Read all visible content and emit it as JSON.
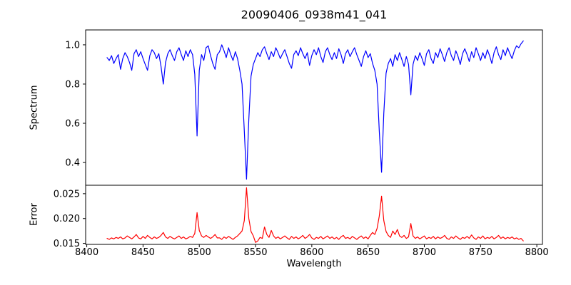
{
  "figure": {
    "title": "20090406_0938m41_041",
    "background_color": "#ffffff",
    "frame_color": "#000000",
    "text_color": "#000000"
  },
  "chart_data": [
    {
      "type": "line",
      "name": "spectrum",
      "title": "20090406_0938m41_041",
      "ylabel": "Spectrum",
      "line_color": "#0000ff",
      "grid": false,
      "legend": false,
      "xlim": [
        8399,
        8805
      ],
      "ylim": [
        0.284,
        1.076
      ],
      "yticks": [
        0.4,
        0.6,
        0.8,
        1.0
      ],
      "ytick_labels": [
        "0.4",
        "0.6",
        "0.8",
        "1.0"
      ],
      "x_start": 8418,
      "x_step": 2,
      "values": [
        0.935,
        0.92,
        0.945,
        0.905,
        0.93,
        0.95,
        0.875,
        0.93,
        0.96,
        0.94,
        0.91,
        0.87,
        0.955,
        0.975,
        0.94,
        0.965,
        0.93,
        0.9,
        0.87,
        0.945,
        0.975,
        0.96,
        0.93,
        0.955,
        0.89,
        0.8,
        0.91,
        0.955,
        0.975,
        0.945,
        0.92,
        0.965,
        0.985,
        0.95,
        0.92,
        0.97,
        0.94,
        0.975,
        0.95,
        0.85,
        0.535,
        0.87,
        0.95,
        0.92,
        0.985,
        0.995,
        0.945,
        0.905,
        0.875,
        0.95,
        0.965,
        1.0,
        0.97,
        0.935,
        0.985,
        0.95,
        0.92,
        0.965,
        0.93,
        0.87,
        0.8,
        0.56,
        0.315,
        0.62,
        0.84,
        0.9,
        0.93,
        0.96,
        0.94,
        0.975,
        0.99,
        0.955,
        0.925,
        0.965,
        0.94,
        0.985,
        0.96,
        0.93,
        0.955,
        0.975,
        0.94,
        0.905,
        0.88,
        0.95,
        0.97,
        0.945,
        0.985,
        0.955,
        0.93,
        0.96,
        0.895,
        0.945,
        0.975,
        0.95,
        0.985,
        0.94,
        0.91,
        0.965,
        0.985,
        0.95,
        0.925,
        0.96,
        0.93,
        0.98,
        0.95,
        0.905,
        0.955,
        0.975,
        0.94,
        0.965,
        0.985,
        0.95,
        0.92,
        0.89,
        0.94,
        0.97,
        0.935,
        0.955,
        0.905,
        0.87,
        0.8,
        0.56,
        0.35,
        0.65,
        0.855,
        0.905,
        0.93,
        0.89,
        0.95,
        0.92,
        0.96,
        0.925,
        0.89,
        0.94,
        0.9,
        0.745,
        0.9,
        0.945,
        0.92,
        0.96,
        0.93,
        0.895,
        0.955,
        0.975,
        0.93,
        0.905,
        0.96,
        0.935,
        0.98,
        0.95,
        0.915,
        0.96,
        0.985,
        0.945,
        0.92,
        0.97,
        0.94,
        0.9,
        0.955,
        0.98,
        0.95,
        0.915,
        0.965,
        0.935,
        0.985,
        0.955,
        0.92,
        0.96,
        0.93,
        0.975,
        0.945,
        0.905,
        0.96,
        0.99,
        0.95,
        0.925,
        0.975,
        0.945,
        0.985,
        0.955,
        0.93,
        0.97,
        0.995,
        0.985,
        1.005,
        1.02
      ]
    },
    {
      "type": "line",
      "name": "error",
      "xlabel": "Wavelength",
      "ylabel": "Error",
      "line_color": "#ff0000",
      "grid": false,
      "legend": false,
      "xlim": [
        8399,
        8805
      ],
      "ylim": [
        0.0148,
        0.0267
      ],
      "yticks": [
        0.015,
        0.02,
        0.025
      ],
      "ytick_labels": [
        "0.015",
        "0.020",
        "0.025"
      ],
      "xticks": [
        8400,
        8450,
        8500,
        8550,
        8600,
        8650,
        8700,
        8750,
        8800
      ],
      "xtick_labels": [
        "8400",
        "8450",
        "8500",
        "8550",
        "8600",
        "8650",
        "8700",
        "8750",
        "8800"
      ],
      "x_start": 8418,
      "x_step": 2,
      "values": [
        0.016,
        0.0158,
        0.0161,
        0.0159,
        0.0162,
        0.016,
        0.0163,
        0.0159,
        0.0161,
        0.0165,
        0.0162,
        0.0159,
        0.0163,
        0.0168,
        0.0161,
        0.0159,
        0.0164,
        0.016,
        0.0166,
        0.0162,
        0.0159,
        0.0163,
        0.016,
        0.0162,
        0.0166,
        0.0172,
        0.0163,
        0.016,
        0.0164,
        0.0161,
        0.0159,
        0.0162,
        0.0165,
        0.016,
        0.0163,
        0.0159,
        0.0161,
        0.0164,
        0.0162,
        0.017,
        0.0212,
        0.0176,
        0.0165,
        0.0162,
        0.0166,
        0.0163,
        0.016,
        0.0163,
        0.0168,
        0.0161,
        0.0161,
        0.0158,
        0.0163,
        0.016,
        0.0164,
        0.0161,
        0.0158,
        0.0162,
        0.0165,
        0.017,
        0.0175,
        0.0196,
        0.0262,
        0.02,
        0.0174,
        0.0165,
        0.0152,
        0.0155,
        0.0162,
        0.016,
        0.0183,
        0.0168,
        0.0162,
        0.0176,
        0.0165,
        0.016,
        0.0163,
        0.0159,
        0.0162,
        0.0165,
        0.0161,
        0.0158,
        0.0164,
        0.016,
        0.0163,
        0.0159,
        0.0162,
        0.0166,
        0.016,
        0.0163,
        0.0168,
        0.0161,
        0.0158,
        0.0162,
        0.016,
        0.0164,
        0.0159,
        0.0162,
        0.0165,
        0.016,
        0.0163,
        0.0159,
        0.0162,
        0.0158,
        0.0163,
        0.0166,
        0.016,
        0.0162,
        0.0159,
        0.0164,
        0.0161,
        0.0158,
        0.0162,
        0.0165,
        0.016,
        0.0163,
        0.0159,
        0.0166,
        0.0172,
        0.0168,
        0.018,
        0.0205,
        0.0245,
        0.0196,
        0.0174,
        0.0166,
        0.0162,
        0.0175,
        0.0168,
        0.0178,
        0.0165,
        0.0162,
        0.0166,
        0.016,
        0.0163,
        0.019,
        0.0165,
        0.016,
        0.0163,
        0.0159,
        0.0162,
        0.0165,
        0.0159,
        0.0162,
        0.016,
        0.0164,
        0.0159,
        0.0163,
        0.016,
        0.0162,
        0.0166,
        0.016,
        0.0158,
        0.0163,
        0.016,
        0.0165,
        0.0161,
        0.0158,
        0.0162,
        0.016,
        0.0164,
        0.016,
        0.0167,
        0.0161,
        0.0158,
        0.0163,
        0.016,
        0.0165,
        0.0159,
        0.0162,
        0.016,
        0.0164,
        0.0159,
        0.0162,
        0.0166,
        0.016,
        0.0163,
        0.0159,
        0.0162,
        0.016,
        0.0163,
        0.0159,
        0.0161,
        0.0158,
        0.016,
        0.0155
      ]
    }
  ]
}
